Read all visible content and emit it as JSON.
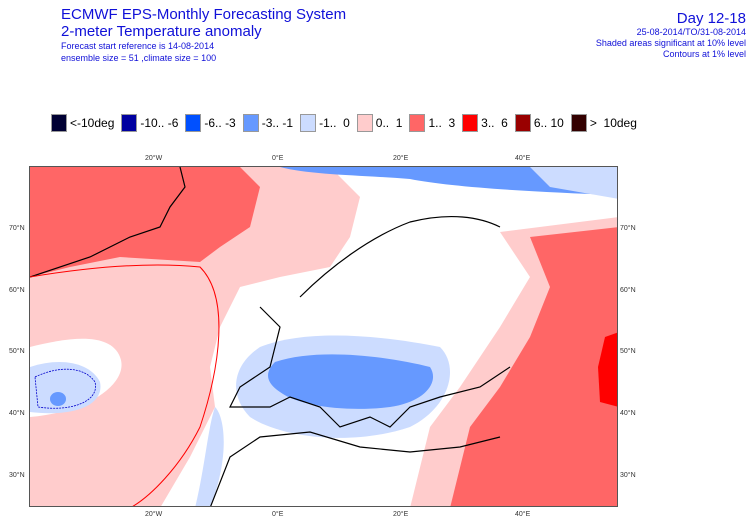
{
  "header": {
    "title": "ECMWF EPS-Monthly Forecasting System",
    "subtitle": "2-meter Temperature anomaly",
    "forecast_ref": "Forecast start reference is 14-08-2014",
    "ensemble_info": "ensemble size = 51   ,climate size = 100",
    "day_range": "Day 12-18",
    "date_range": "25-08-2014/TO/31-08-2014",
    "shading_note": "Shaded areas significant at 10% level",
    "contour_note": "Contours at 1% level"
  },
  "legend": [
    {
      "label": "<-10deg",
      "color": "#000033"
    },
    {
      "label": "-10.. -6",
      "color": "#0000a0"
    },
    {
      "label": "-6.. -3",
      "color": "#0050ff"
    },
    {
      "label": "-3.. -1",
      "color": "#6699ff"
    },
    {
      "label": "-1..  0",
      "color": "#ccdcff"
    },
    {
      "label": "0..  1",
      "color": "#ffcccc"
    },
    {
      "label": "1..  3",
      "color": "#ff6666"
    },
    {
      "label": "3..  6",
      "color": "#ff0000"
    },
    {
      "label": "6.. 10",
      "color": "#990000"
    },
    {
      "label": ">  10deg",
      "color": "#330000"
    }
  ],
  "axes": {
    "lon_top": [
      "20°W",
      "0°E",
      "20°E",
      "40°E"
    ],
    "lon_bottom": [
      "20°W",
      "0°E",
      "20°E",
      "40°E"
    ],
    "lat_left": [
      "70°N",
      "60°N",
      "50°N",
      "40°N",
      "30°N"
    ],
    "lat_right": [
      "70°N",
      "60°N",
      "50°N",
      "40°N",
      "30°N"
    ]
  },
  "map_regions": {
    "warm_north_atlantic": "1..3",
    "warm_east_russia_caspian": "3..6",
    "cool_central_europe_med": "-3..-1",
    "cool_mid_atlantic": "-3..-1",
    "neutral_scandinavia": "0"
  }
}
